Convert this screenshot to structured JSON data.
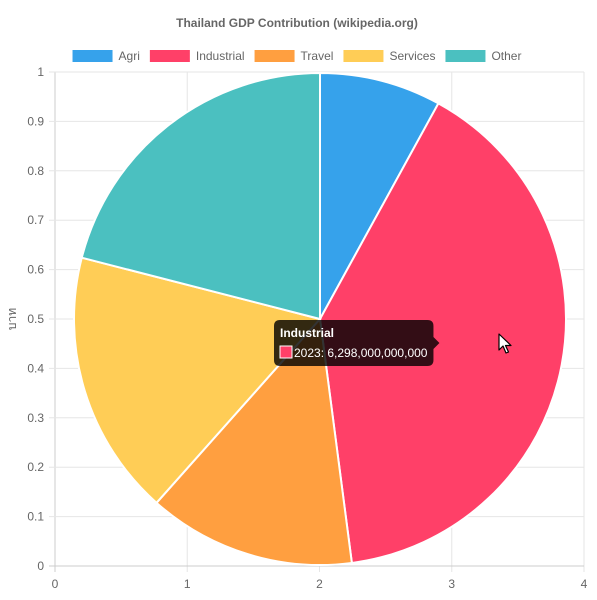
{
  "chart_data": {
    "type": "pie",
    "title": "Thailand GDP Contribution (wikipedia.org)",
    "ylabel": "บาท",
    "legend_position": "top",
    "grid": true,
    "x_ticks": [
      "0",
      "1",
      "2",
      "3",
      "4"
    ],
    "y_ticks": [
      "0",
      "0.1",
      "0.2",
      "0.3",
      "0.4",
      "0.5",
      "0.6",
      "0.7",
      "0.8",
      "0.9",
      "1"
    ],
    "xlim": [
      0,
      4
    ],
    "ylim": [
      0,
      1
    ],
    "series_label": "2023",
    "slices": [
      {
        "name": "Agri",
        "value": 1260000000000,
        "color": "#36a2eb"
      },
      {
        "name": "Industrial",
        "value": 6298000000000,
        "color": "#ff4068"
      },
      {
        "name": "Travel",
        "value": 2150000000000,
        "color": "#ff9f40"
      },
      {
        "name": "Services",
        "value": 2750000000000,
        "color": "#ffcd56"
      },
      {
        "name": "Other",
        "value": 3310000000000,
        "color": "#4bc0c0"
      }
    ]
  },
  "tooltip": {
    "title": "Industrial",
    "text": "2023: 6,298,000,000,000"
  },
  "cursor": "arrow-pointer-icon"
}
